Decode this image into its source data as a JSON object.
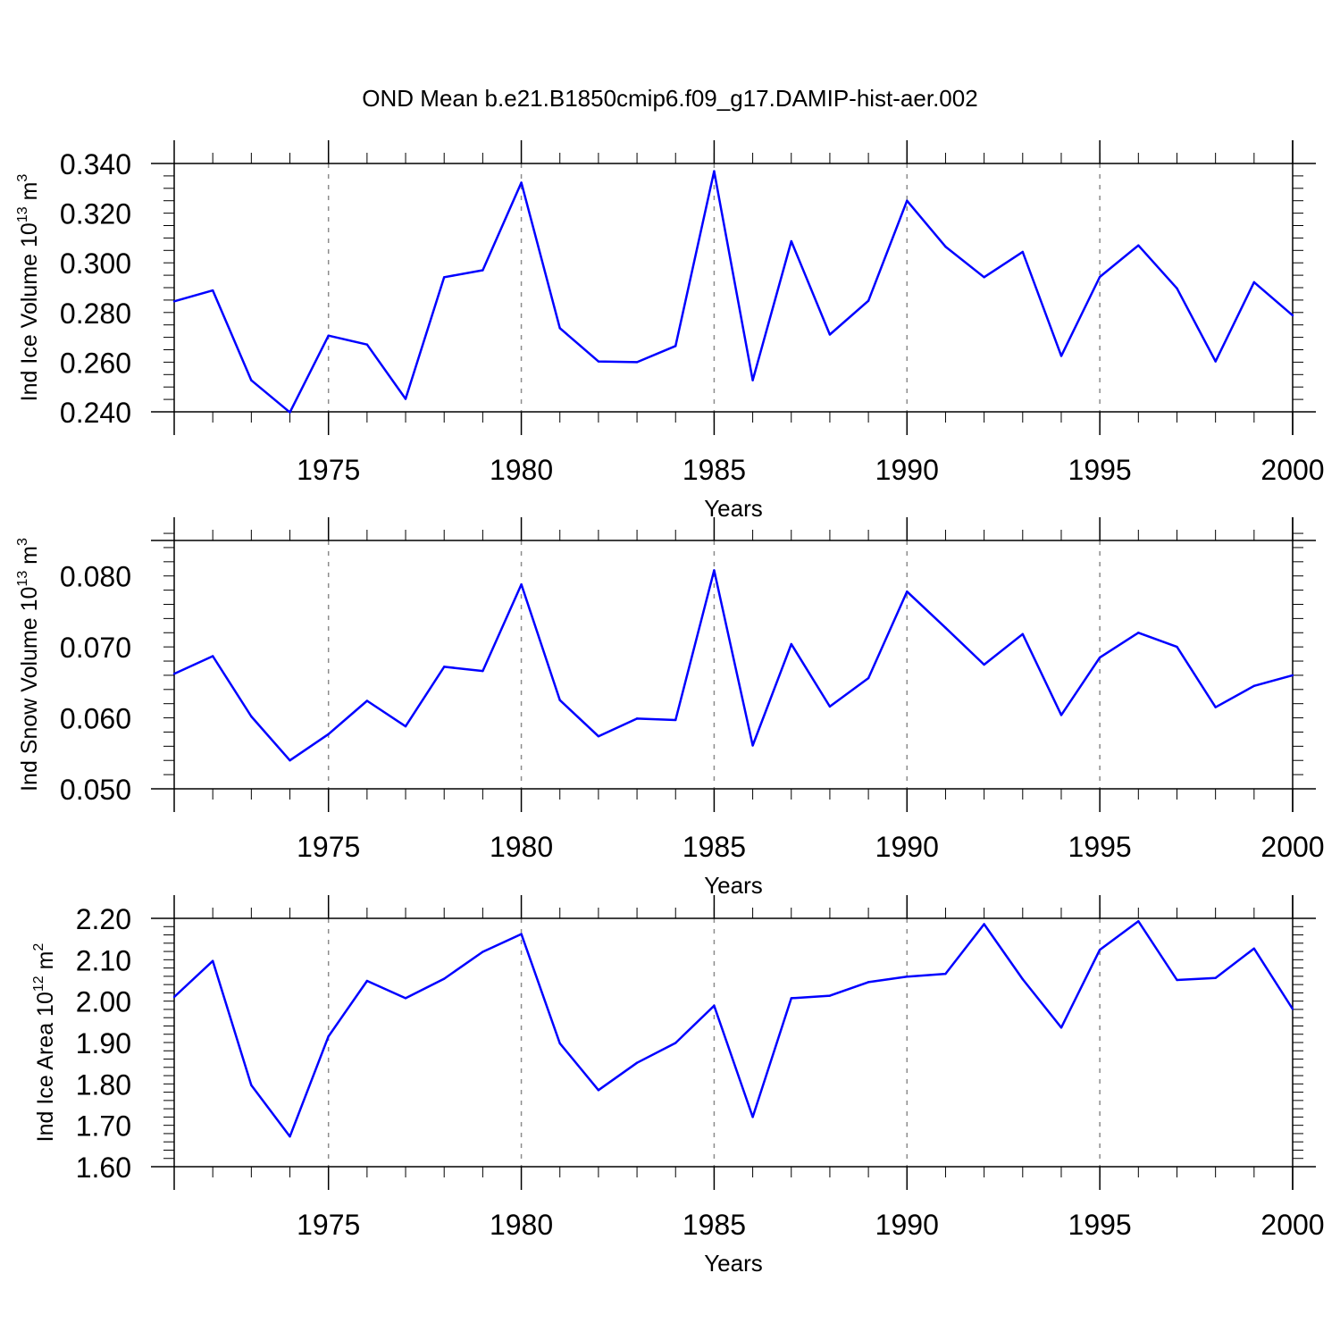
{
  "title": "OND Mean b.e21.B1850cmip6.f09_g17.DAMIP-hist-aer.002",
  "colors": {
    "line": "#0000ff",
    "axis": "#000000",
    "grid": "#8c8c8c"
  },
  "chart_data": [
    {
      "type": "line",
      "series": [
        {
          "name": "Ind Ice Volume",
          "x": [
            1971,
            1972,
            1973,
            1974,
            1975,
            1976,
            1977,
            1978,
            1979,
            1980,
            1981,
            1982,
            1983,
            1984,
            1985,
            1986,
            1987,
            1988,
            1989,
            1990,
            1991,
            1992,
            1993,
            1994,
            1995,
            1996,
            1997,
            1998,
            1999,
            2000
          ],
          "values": [
            0.2845,
            0.2889,
            0.2527,
            0.2398,
            0.2707,
            0.2671,
            0.2452,
            0.2942,
            0.297,
            0.3323,
            0.2737,
            0.2603,
            0.26,
            0.2665,
            0.3369,
            0.2527,
            0.3087,
            0.2711,
            0.2847,
            0.325,
            0.3065,
            0.2942,
            0.3044,
            0.2625,
            0.2943,
            0.307,
            0.2897,
            0.2603,
            0.2922,
            0.2788
          ]
        }
      ],
      "xlabel": "Years",
      "ylabel": {
        "main": "Ind Ice Volume 10",
        "exp": "13",
        "unit": " m",
        "unit_exp": "3"
      },
      "xlim": [
        1971,
        2000
      ],
      "ylim": [
        0.24,
        0.34
      ],
      "yticks": [
        0.24,
        0.26,
        0.28,
        0.3,
        0.32,
        0.34
      ],
      "ytick_labels": [
        "0.240",
        "0.260",
        "0.280",
        "0.300",
        "0.320",
        "0.340"
      ],
      "yminor": 0.005,
      "xticks": [
        1975,
        1980,
        1985,
        1990,
        1995,
        2000
      ],
      "xtick_labels": [
        "1975",
        "1980",
        "1985",
        "1990",
        "1995",
        "2000"
      ],
      "grid": true
    },
    {
      "type": "line",
      "series": [
        {
          "name": "Ind Snow Volume",
          "x": [
            1971,
            1972,
            1973,
            1974,
            1975,
            1976,
            1977,
            1978,
            1979,
            1980,
            1981,
            1982,
            1983,
            1984,
            1985,
            1986,
            1987,
            1988,
            1989,
            1990,
            1991,
            1992,
            1993,
            1994,
            1995,
            1996,
            1997,
            1998,
            1999,
            2000
          ],
          "values": [
            0.0662,
            0.0687,
            0.0602,
            0.054,
            0.0577,
            0.0624,
            0.0588,
            0.0672,
            0.0666,
            0.0788,
            0.0625,
            0.0574,
            0.0599,
            0.0597,
            0.0808,
            0.0561,
            0.0704,
            0.0616,
            0.0656,
            0.0778,
            0.0727,
            0.0675,
            0.0718,
            0.0604,
            0.0685,
            0.072,
            0.07,
            0.0615,
            0.0645,
            0.066
          ]
        }
      ],
      "xlabel": "Years",
      "ylabel": {
        "main": "Ind Snow Volume 10",
        "exp": "13",
        "unit": " m",
        "unit_exp": "3"
      },
      "xlim": [
        1971,
        2000
      ],
      "ylim": [
        0.05,
        0.085
      ],
      "yticks": [
        0.05,
        0.06,
        0.07,
        0.08
      ],
      "ytick_labels": [
        "0.050",
        "0.060",
        "0.070",
        "0.080"
      ],
      "yminor": 0.002,
      "xticks": [
        1975,
        1980,
        1985,
        1990,
        1995,
        2000
      ],
      "xtick_labels": [
        "1975",
        "1980",
        "1985",
        "1990",
        "1995",
        "2000"
      ],
      "grid": true
    },
    {
      "type": "line",
      "series": [
        {
          "name": "Ind Ice Area",
          "x": [
            1971,
            1972,
            1973,
            1974,
            1975,
            1976,
            1977,
            1978,
            1979,
            1980,
            1981,
            1982,
            1983,
            1984,
            1985,
            1986,
            1987,
            1988,
            1989,
            1990,
            1991,
            1992,
            1993,
            1994,
            1995,
            1996,
            1997,
            1998,
            1999,
            2000
          ],
          "values": [
            2.01,
            2.097,
            1.797,
            1.673,
            1.915,
            2.049,
            2.007,
            2.054,
            2.119,
            2.162,
            1.898,
            1.785,
            1.851,
            1.899,
            1.989,
            1.72,
            2.007,
            2.013,
            2.046,
            2.059,
            2.066,
            2.186,
            2.053,
            1.936,
            2.124,
            2.193,
            2.051,
            2.056,
            2.127,
            1.981
          ]
        }
      ],
      "xlabel": "Years",
      "ylabel": {
        "main": "Ind Ice Area 10",
        "exp": "12",
        "unit": " m",
        "unit_exp": "2"
      },
      "xlim": [
        1971,
        2000
      ],
      "ylim": [
        1.6,
        2.2
      ],
      "yticks": [
        1.6,
        1.7,
        1.8,
        1.9,
        2.0,
        2.1,
        2.2
      ],
      "ytick_labels": [
        "1.60",
        "1.70",
        "1.80",
        "1.90",
        "2.00",
        "2.10",
        "2.20"
      ],
      "yminor": 0.02,
      "xticks": [
        1975,
        1980,
        1985,
        1990,
        1995,
        2000
      ],
      "xtick_labels": [
        "1975",
        "1980",
        "1985",
        "1990",
        "1995",
        "2000"
      ],
      "grid": true
    }
  ]
}
